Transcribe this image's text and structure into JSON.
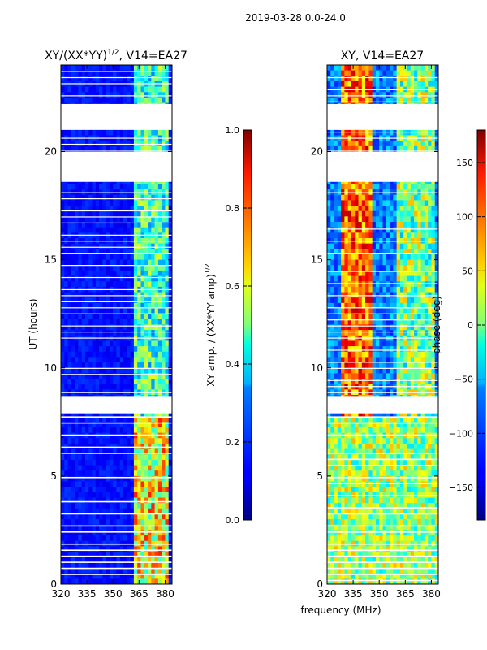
{
  "suptitle": "2019-03-28 0.0-24.0",
  "colors": {
    "axis": "#000000",
    "gap": "#ffffff"
  },
  "chart_data": [
    {
      "type": "heatmap",
      "title": "XY/(XX*YY)^1/2, V14=EA27",
      "title_main": "XY/(XX*YY)",
      "title_sup": "1/2",
      "title_tail": ", V14=EA27",
      "xlabel": "",
      "ylabel": "UT (hours)",
      "xlim": [
        320,
        384
      ],
      "ylim": [
        0,
        24
      ],
      "xticks": [
        320,
        335,
        350,
        365,
        380
      ],
      "yticks": [
        0,
        5,
        10,
        15,
        20
      ],
      "data_gaps_hours": [
        [
          21.0,
          22.2
        ],
        [
          18.6,
          20.0
        ],
        [
          8.7,
          7.9
        ]
      ],
      "colorbar": {
        "label": "XY amp. / (XX*YY amp)^1/2",
        "label_main": "XY amp. / (XX*YY amp)",
        "label_sup": "1/2",
        "range": [
          0.0,
          1.0
        ],
        "ticks": [
          "0.0",
          "0.2",
          "0.4",
          "0.6",
          "0.8",
          "1.0"
        ]
      }
    },
    {
      "type": "heatmap",
      "title": "XY, V14=EA27",
      "xlabel": "frequency (MHz)",
      "ylabel": "",
      "xlim": [
        320,
        384
      ],
      "ylim": [
        0,
        24
      ],
      "xticks": [
        320,
        335,
        350,
        365,
        380
      ],
      "yticks": [
        0,
        5,
        10,
        15,
        20
      ],
      "colorbar": {
        "label": "phase (deg)",
        "range": [
          -180,
          180
        ],
        "ticks": [
          "-150",
          "-100",
          "-50",
          "0",
          "50",
          "100",
          "150"
        ]
      }
    }
  ]
}
